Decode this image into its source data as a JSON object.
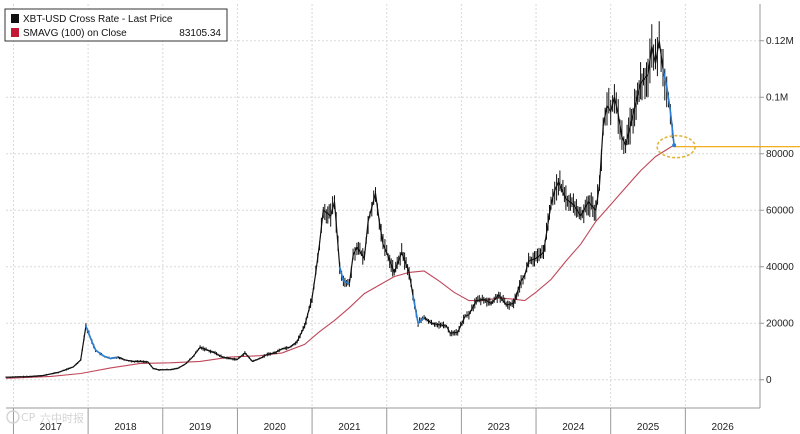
{
  "chart_data": {
    "type": "line",
    "title": "",
    "xlabel": "",
    "ylabel": "",
    "ylim": [
      -10000,
      133000
    ],
    "xlim": [
      2016.9,
      2027.0
    ],
    "grid": true,
    "legend_position": "top-left",
    "y_ticks": [
      {
        "value": 0,
        "label": "0"
      },
      {
        "value": 20000,
        "label": "20000"
      },
      {
        "value": 40000,
        "label": "40000"
      },
      {
        "value": 60000,
        "label": "60000"
      },
      {
        "value": 80000,
        "label": "80000"
      },
      {
        "value": 100000,
        "label": "0.1M"
      },
      {
        "value": 120000,
        "label": "0.12M"
      }
    ],
    "x_categories": [
      "2017",
      "2018",
      "2019",
      "2020",
      "2021",
      "2022",
      "2023",
      "2024",
      "2025",
      "2026"
    ],
    "last_value_line": 82500,
    "series": [
      {
        "name": "XBT-USD Cross Rate - Last Price",
        "color": "#111111",
        "highlight_color": "#2a7fd4",
        "x": [
          2016.9,
          2017.2,
          2017.4,
          2017.6,
          2017.8,
          2017.9,
          2017.97,
          2018.05,
          2018.1,
          2018.2,
          2018.3,
          2018.4,
          2018.5,
          2018.6,
          2018.7,
          2018.8,
          2018.87,
          2018.95,
          2019.1,
          2019.2,
          2019.3,
          2019.4,
          2019.5,
          2019.6,
          2019.7,
          2019.8,
          2019.9,
          2020.0,
          2020.1,
          2020.2,
          2020.3,
          2020.4,
          2020.5,
          2020.6,
          2020.7,
          2020.8,
          2020.9,
          2021.0,
          2021.05,
          2021.1,
          2021.15,
          2021.25,
          2021.3,
          2021.37,
          2021.42,
          2021.5,
          2021.55,
          2021.6,
          2021.7,
          2021.75,
          2021.8,
          2021.85,
          2021.9,
          2021.95,
          2022.0,
          2022.1,
          2022.2,
          2022.3,
          2022.35,
          2022.42,
          2022.5,
          2022.6,
          2022.7,
          2022.8,
          2022.85,
          2022.95,
          2023.05,
          2023.1,
          2023.2,
          2023.3,
          2023.4,
          2023.5,
          2023.6,
          2023.7,
          2023.8,
          2023.85,
          2023.9,
          2024.0,
          2024.1,
          2024.2,
          2024.25,
          2024.3,
          2024.4,
          2024.5,
          2024.6,
          2024.7,
          2024.8,
          2024.85,
          2024.9,
          2024.95,
          2025.0,
          2025.05,
          2025.1,
          2025.15,
          2025.2,
          2025.3,
          2025.4,
          2025.5,
          2025.55,
          2025.6,
          2025.65,
          2025.7,
          2025.75,
          2025.8,
          2025.85
        ],
        "y": [
          900,
          1100,
          1500,
          2600,
          4500,
          7000,
          19000,
          13500,
          10500,
          8500,
          7500,
          8000,
          7000,
          6500,
          6500,
          6300,
          4000,
          3500,
          3600,
          4000,
          5500,
          8000,
          11500,
          10500,
          9500,
          8000,
          7500,
          7200,
          9500,
          6500,
          7500,
          9000,
          9500,
          11000,
          11500,
          13500,
          19000,
          29000,
          38000,
          48000,
          60000,
          58000,
          63000,
          40000,
          35000,
          34000,
          44000,
          47000,
          43000,
          56000,
          61000,
          66000,
          56000,
          48000,
          45000,
          38000,
          45000,
          38000,
          30000,
          20000,
          22000,
          20000,
          19500,
          19000,
          16500,
          16800,
          22500,
          23000,
          28000,
          28500,
          27000,
          30000,
          26500,
          27000,
          35000,
          37000,
          42000,
          43000,
          45000,
          62000,
          67000,
          70000,
          64000,
          62000,
          58000,
          63000,
          60000,
          69000,
          90000,
          97000,
          95000,
          100000,
          94000,
          86000,
          83000,
          94000,
          105000,
          108000,
          118000,
          112000,
          120000,
          110000,
          104000,
          95000,
          83000
        ],
        "highlight_segments": [
          {
            "x": [
              2017.97,
              2018.05,
              2018.1,
              2018.2,
              2018.3,
              2018.4
            ]
          },
          {
            "x": [
              2021.37,
              2021.42,
              2021.5
            ]
          },
          {
            "x": [
              2022.35,
              2022.42,
              2022.5
            ]
          },
          {
            "x": [
              2025.7,
              2025.75,
              2025.8,
              2025.85
            ]
          }
        ]
      },
      {
        "name": "SMAVG (100)  on Close",
        "legend_value": "83105.34",
        "color": "#c0475a",
        "x": [
          2016.9,
          2017.5,
          2017.9,
          2018.3,
          2018.7,
          2019.1,
          2019.5,
          2019.9,
          2020.3,
          2020.6,
          2020.9,
          2021.1,
          2021.3,
          2021.5,
          2021.7,
          2021.9,
          2022.1,
          2022.3,
          2022.5,
          2022.7,
          2022.9,
          2023.1,
          2023.3,
          2023.5,
          2023.7,
          2023.85,
          2024.0,
          2024.2,
          2024.4,
          2024.6,
          2024.8,
          2025.0,
          2025.2,
          2025.4,
          2025.6,
          2025.85
        ],
        "y": [
          500,
          1200,
          2200,
          4200,
          5800,
          6000,
          6500,
          8000,
          8500,
          9500,
          12500,
          17000,
          21000,
          25500,
          30500,
          33500,
          36500,
          38000,
          38500,
          35000,
          31000,
          28000,
          28000,
          29000,
          28500,
          28000,
          31000,
          35500,
          42000,
          48000,
          56000,
          62000,
          68000,
          74000,
          79000,
          83105
        ]
      }
    ]
  },
  "legend": {
    "entries": [
      {
        "label": "XBT-USD Cross Rate - Last Price",
        "value": ""
      },
      {
        "label": "SMAVG (100)  on Close",
        "value": "83105.34"
      }
    ]
  },
  "watermark": {
    "text": "六中时报",
    "mark": "CP"
  },
  "colors": {
    "grid": "#d9d9d9",
    "axis": "#999999",
    "level_line": "#f0a500",
    "circle": "#e3b33a",
    "legend_sma_swatch": "#c01835",
    "legend_price_swatch": "#111111"
  }
}
